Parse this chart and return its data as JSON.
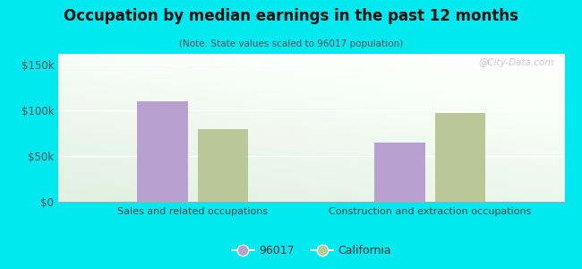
{
  "title": "Occupation by median earnings in the past 12 months",
  "subtitle": "(Note: State values scaled to 96017 population)",
  "categories": [
    "Sales and related occupations",
    "Construction and extraction occupations"
  ],
  "values_96017": [
    110000,
    65000
  ],
  "values_california": [
    80000,
    97000
  ],
  "bar_color_96017": "#b8a0d0",
  "bar_color_california": "#b8c898",
  "ylim": [
    0,
    162000
  ],
  "yticks": [
    0,
    50000,
    100000,
    150000
  ],
  "ytick_labels": [
    "$0",
    "$50k",
    "$100k",
    "$150k"
  ],
  "background_outer": "#00e8f0",
  "watermark": "@City-Data.com",
  "legend_96017": "96017",
  "legend_california": "California",
  "bar_width": 0.32,
  "x_positions": [
    0.85,
    2.35
  ]
}
